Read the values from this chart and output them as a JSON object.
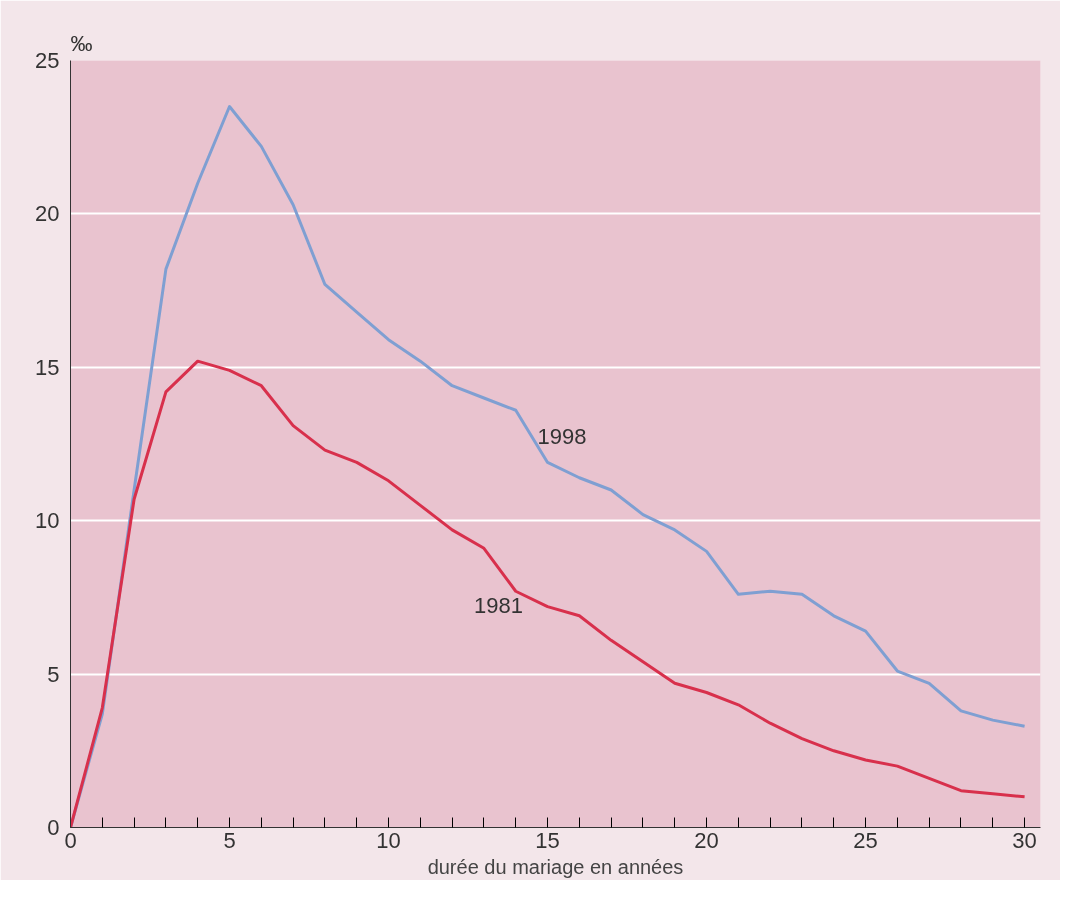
{
  "chart_data": {
    "type": "line",
    "ylabel": "‰",
    "xlabel": "durée du mariage en années",
    "x": [
      0,
      1,
      2,
      3,
      4,
      5,
      6,
      7,
      8,
      9,
      10,
      11,
      12,
      13,
      14,
      15,
      16,
      17,
      18,
      19,
      20,
      21,
      22,
      23,
      24,
      25,
      26,
      27,
      28,
      29,
      30
    ],
    "series": [
      {
        "name": "1998",
        "color": "#7f9fd2",
        "values": [
          0,
          3.7,
          11,
          18.2,
          21,
          23.5,
          22.2,
          20.3,
          17.7,
          16.8,
          15.9,
          15.2,
          14.4,
          14.0,
          13.6,
          11.9,
          11.4,
          11.0,
          10.2,
          9.7,
          9.0,
          7.6,
          7.7,
          7.6,
          6.9,
          6.4,
          5.1,
          4.7,
          3.8,
          3.5,
          3.3
        ]
      },
      {
        "name": "1981",
        "color": "#d8304c",
        "values": [
          0,
          3.9,
          10.7,
          14.2,
          15.2,
          14.9,
          14.4,
          13.1,
          12.3,
          11.9,
          11.3,
          10.5,
          9.7,
          9.1,
          7.7,
          7.2,
          6.9,
          6.1,
          5.4,
          4.7,
          4.4,
          4.0,
          3.4,
          2.9,
          2.5,
          2.2,
          2.0,
          1.6,
          1.2,
          1.1,
          1.0
        ]
      }
    ],
    "xlim": [
      0,
      30.5
    ],
    "ylim": [
      0,
      25
    ],
    "xticks": [
      0,
      {
        "value": 1,
        "label": null
      },
      {
        "value": 2,
        "label": null
      },
      {
        "value": 3,
        "label": null
      },
      {
        "value": 4,
        "label": null
      },
      5,
      {
        "value": 6,
        "label": null
      },
      {
        "value": 7,
        "label": null
      },
      {
        "value": 8,
        "label": null
      },
      {
        "value": 9,
        "label": null
      },
      10,
      {
        "value": 11,
        "label": null
      },
      {
        "value": 12,
        "label": null
      },
      {
        "value": 13,
        "label": null
      },
      {
        "value": 14,
        "label": null
      },
      15,
      {
        "value": 16,
        "label": null
      },
      {
        "value": 17,
        "label": null
      },
      {
        "value": 18,
        "label": null
      },
      {
        "value": 19,
        "label": null
      },
      20,
      {
        "value": 21,
        "label": null
      },
      {
        "value": 22,
        "label": null
      },
      {
        "value": 23,
        "label": null
      },
      {
        "value": 24,
        "label": null
      },
      25,
      {
        "value": 26,
        "label": null
      },
      {
        "value": 27,
        "label": null
      },
      {
        "value": 28,
        "label": null
      },
      {
        "value": 29,
        "label": null
      },
      30
    ],
    "yticks": [
      0,
      5,
      10,
      15,
      20,
      25
    ],
    "grid": "y",
    "marker": "none",
    "line_style": "solid"
  }
}
